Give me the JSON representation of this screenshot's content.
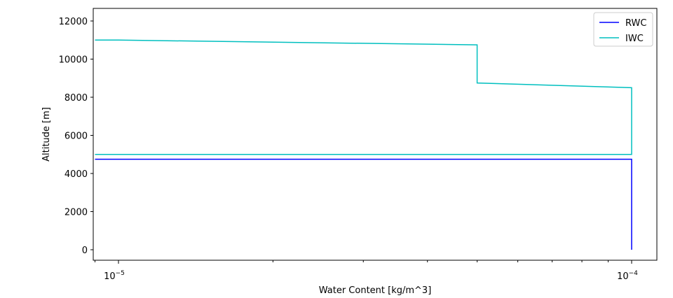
{
  "chart_data": {
    "type": "line",
    "title": "",
    "xlabel": "Water Content [kg/m^3]",
    "ylabel": "Altitude [m]",
    "xscale": "log",
    "xlim": [
      9e-06,
      0.00012
    ],
    "ylim": [
      -500,
      12600
    ],
    "yticks": [
      0,
      2000,
      4000,
      6000,
      8000,
      10000,
      12000
    ],
    "xticks_major": [
      {
        "value": 1e-05,
        "base": "10",
        "exp": "−5"
      },
      {
        "value": 0.0001,
        "base": "10",
        "exp": "−4"
      }
    ],
    "xticks_minor": [
      2e-05,
      3e-05,
      4e-05,
      5e-05,
      6e-05,
      7e-05,
      8e-05,
      9e-05
    ],
    "legend": "top-right",
    "grid": false,
    "series": [
      {
        "name": "RWC",
        "color": "#0000ff",
        "x": [
          0.0001,
          0.0001,
          9e-06
        ],
        "y": [
          0,
          4750,
          4750
        ]
      },
      {
        "name": "IWC",
        "color": "#00bfbf",
        "x": [
          9e-06,
          0.0001,
          0.0001,
          5e-05,
          5e-05,
          1e-05,
          9e-06
        ],
        "y": [
          5000,
          5000,
          8500,
          8750,
          10750,
          11000,
          11000
        ]
      }
    ]
  }
}
